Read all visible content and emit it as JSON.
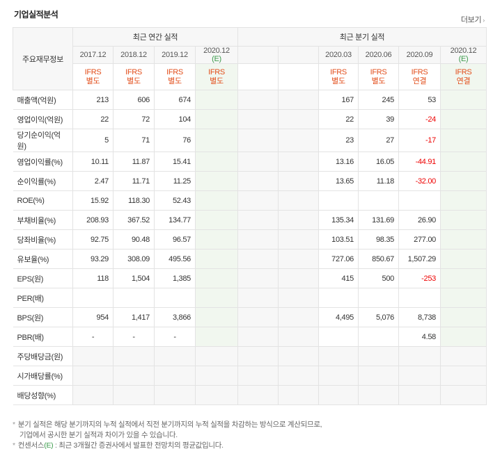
{
  "header": {
    "title": "기업실적분석",
    "more_label": "더보기"
  },
  "table": {
    "row_header_label": "주요재무정보",
    "annual_label": "최근 연간 실적",
    "quarterly_label": "최근 분기 실적",
    "annual_periods": [
      "2017.12",
      "2018.12",
      "2019.12",
      "2020.12"
    ],
    "annual_est_mark": "(E)",
    "quarter_periods": [
      "2020.03",
      "2020.06",
      "2020.09",
      "2020.12"
    ],
    "quarter_est_mark": "(E)",
    "annual_types": [
      [
        "IFRS",
        "별도"
      ],
      [
        "IFRS",
        "별도"
      ],
      [
        "IFRS",
        "별도"
      ],
      [
        "IFRS",
        "별도"
      ]
    ],
    "quarter_types": [
      [
        "IFRS",
        "별도"
      ],
      [
        "IFRS",
        "별도"
      ],
      [
        "IFRS",
        "연결"
      ],
      [
        "IFRS",
        "연결"
      ]
    ],
    "rows": [
      {
        "label": "매출액(억원)",
        "annual": [
          "213",
          "606",
          "674",
          ""
        ],
        "quarter": [
          "167",
          "245",
          "53",
          ""
        ],
        "group_start": true
      },
      {
        "label": "영업이익(억원)",
        "annual": [
          "22",
          "72",
          "104",
          ""
        ],
        "quarter": [
          "22",
          "39",
          "-24",
          ""
        ]
      },
      {
        "label": "당기순이익(억원)",
        "annual": [
          "5",
          "71",
          "76",
          ""
        ],
        "quarter": [
          "23",
          "27",
          "-17",
          ""
        ]
      },
      {
        "label": "영업이익률(%)",
        "annual": [
          "10.11",
          "11.87",
          "15.41",
          ""
        ],
        "quarter": [
          "13.16",
          "16.05",
          "-44.91",
          ""
        ],
        "group_start": true
      },
      {
        "label": "순이익률(%)",
        "annual": [
          "2.47",
          "11.71",
          "11.25",
          ""
        ],
        "quarter": [
          "13.65",
          "11.18",
          "-32.00",
          ""
        ]
      },
      {
        "label": "ROE(%)",
        "annual": [
          "15.92",
          "118.30",
          "52.43",
          ""
        ],
        "quarter": [
          "",
          "",
          "",
          ""
        ]
      },
      {
        "label": "부채비율(%)",
        "annual": [
          "208.93",
          "367.52",
          "134.77",
          ""
        ],
        "quarter": [
          "135.34",
          "131.69",
          "26.90",
          ""
        ],
        "group_start": true
      },
      {
        "label": "당좌비율(%)",
        "annual": [
          "92.75",
          "90.48",
          "96.57",
          ""
        ],
        "quarter": [
          "103.51",
          "98.35",
          "277.00",
          ""
        ]
      },
      {
        "label": "유보율(%)",
        "annual": [
          "93.29",
          "308.09",
          "495.56",
          ""
        ],
        "quarter": [
          "727.06",
          "850.67",
          "1,507.29",
          ""
        ]
      },
      {
        "label": "EPS(원)",
        "annual": [
          "118",
          "1,504",
          "1,385",
          ""
        ],
        "quarter": [
          "415",
          "500",
          "-253",
          ""
        ],
        "group_start": true
      },
      {
        "label": "PER(배)",
        "annual": [
          "",
          "",
          "",
          ""
        ],
        "quarter": [
          "",
          "",
          "",
          ""
        ]
      },
      {
        "label": "BPS(원)",
        "annual": [
          "954",
          "1,417",
          "3,866",
          ""
        ],
        "quarter": [
          "4,495",
          "5,076",
          "8,738",
          ""
        ]
      },
      {
        "label": "PBR(배)",
        "annual": [
          "-",
          "-",
          "-",
          ""
        ],
        "quarter": [
          "",
          "",
          "4.58",
          ""
        ]
      },
      {
        "label": "주당배당금(원)",
        "annual": [
          "",
          "",
          "",
          ""
        ],
        "quarter": [
          "",
          "",
          "",
          ""
        ],
        "group_start": true,
        "shaded": true
      },
      {
        "label": "시가배당률(%)",
        "annual": [
          "",
          "",
          "",
          ""
        ],
        "quarter": [
          "",
          "",
          "",
          ""
        ],
        "shaded": true
      },
      {
        "label": "배당성향(%)",
        "annual": [
          "",
          "",
          "",
          ""
        ],
        "quarter": [
          "",
          "",
          "",
          ""
        ],
        "shaded": true
      }
    ]
  },
  "notes": {
    "line1": "분기 실적은 해당 분기까지의 누적 실적에서 직전 분기까지의 누적 실적을 차감하는 방식으로 계산되므로,",
    "line2": "기업에서 공시한 분기 실적과 차이가 있을 수 있습니다.",
    "line3_prefix": "컨센서스",
    "line3_mark": "(E)",
    "line3_suffix": ": 최근 3개월간 증권사에서 발표한 전망치의 평균값입니다."
  }
}
